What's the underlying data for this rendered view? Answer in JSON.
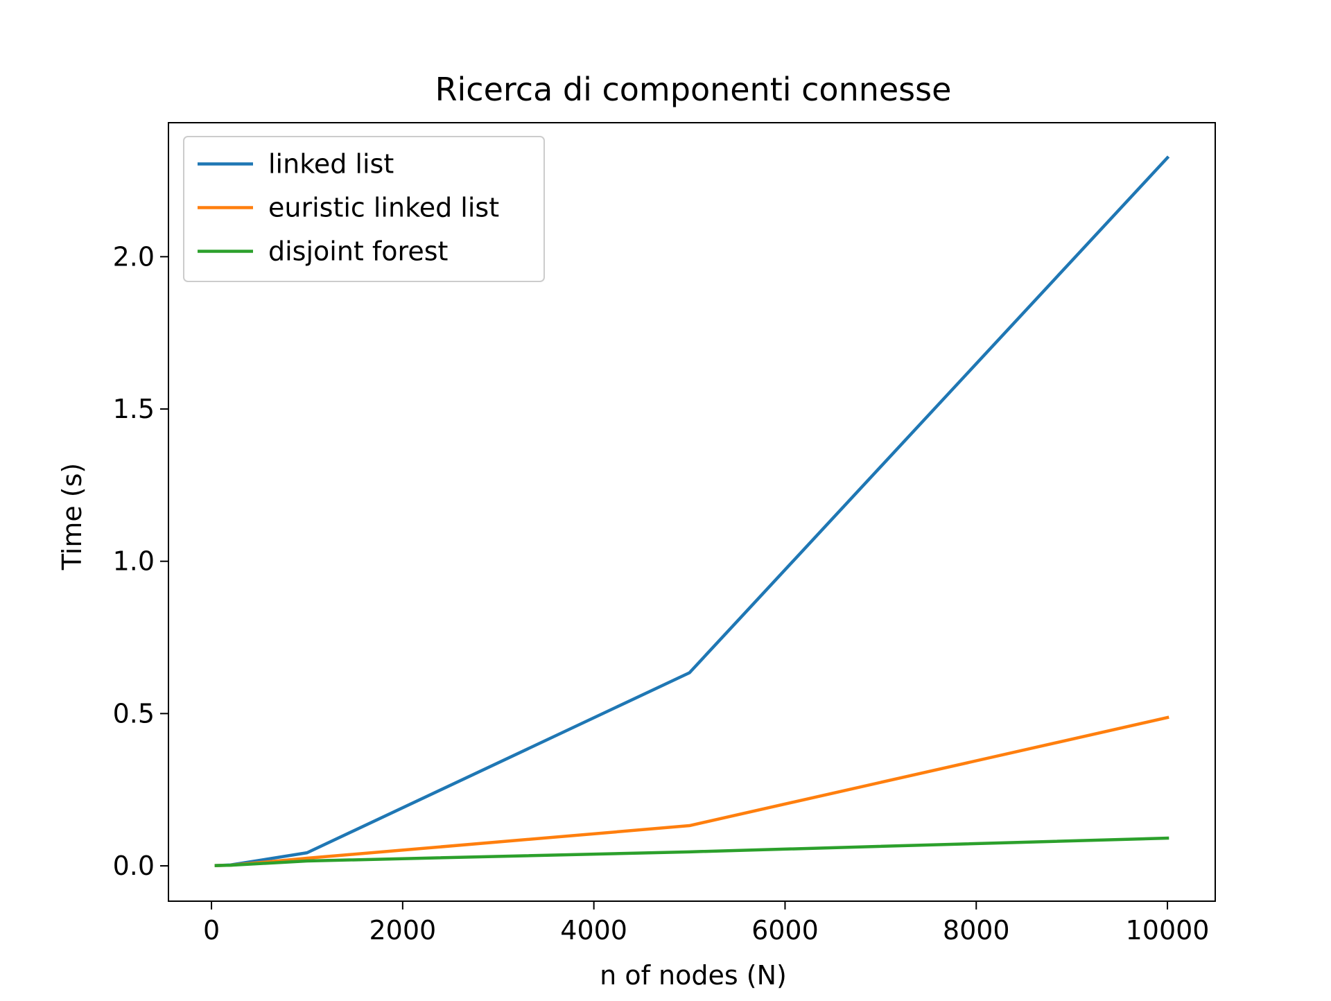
{
  "chart_data": {
    "type": "line",
    "title": "Ricerca di componenti connesse",
    "xlabel": "n of nodes (N)",
    "ylabel": "Time (s)",
    "xlim": [
      -450,
      10500
    ],
    "ylim": [
      -0.116,
      2.44
    ],
    "xticks": [
      0,
      2000,
      4000,
      6000,
      8000,
      10000
    ],
    "xtick_labels": [
      "0",
      "2000",
      "4000",
      "6000",
      "8000",
      "10000"
    ],
    "yticks": [
      0.0,
      0.5,
      1.0,
      1.5,
      2.0
    ],
    "ytick_labels": [
      "0.0",
      "0.5",
      "1.0",
      "1.5",
      "2.0"
    ],
    "grid": false,
    "legend_position": "top-left",
    "series": [
      {
        "name": "linked list",
        "color": "#1f77b4",
        "x": [
          50,
          200,
          1000,
          5000,
          10000
        ],
        "y": [
          0.001,
          0.003,
          0.043,
          0.634,
          2.325
        ]
      },
      {
        "name": "euristic linked list",
        "color": "#ff7f0e",
        "x": [
          50,
          200,
          1000,
          5000,
          10000
        ],
        "y": [
          0.001,
          0.002,
          0.025,
          0.132,
          0.487
        ]
      },
      {
        "name": "disjoint forest",
        "color": "#2ca02c",
        "x": [
          50,
          200,
          1000,
          5000,
          10000
        ],
        "y": [
          0.001,
          0.002,
          0.016,
          0.046,
          0.091
        ]
      }
    ]
  }
}
